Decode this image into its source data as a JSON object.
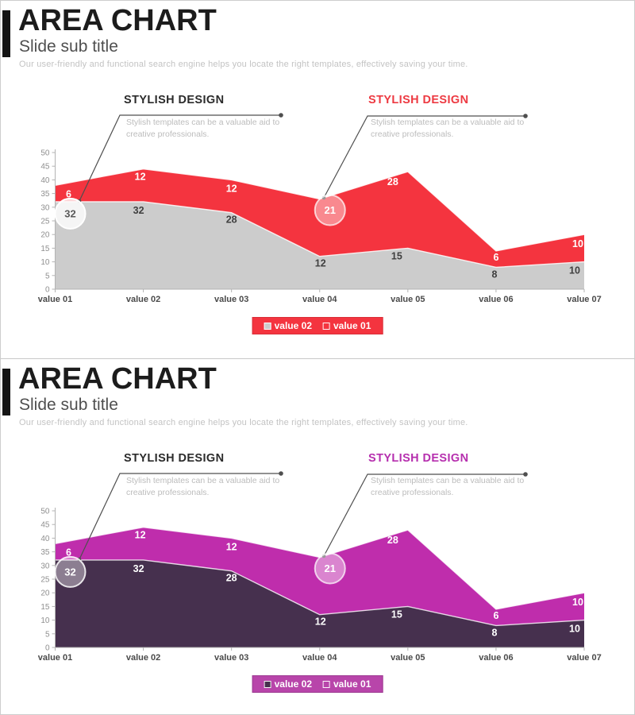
{
  "slides": [
    {
      "header": {
        "title": "AREA CHART",
        "subtitle": "Slide sub title",
        "description": "Our user-friendly and functional search engine helps you locate the right templates, effectively saving your time."
      },
      "callouts": [
        {
          "title": "STYLISH DESIGN",
          "title_color": "#2b2b2b",
          "body": "Stylish templates can be a valuable aid to creative professionals."
        },
        {
          "title": "STYLISH DESIGN",
          "title_color": "#ed3a42",
          "body": "Stylish templates can be a valuable aid to creative professionals."
        }
      ],
      "legend": {
        "bg": "#f4343f",
        "border": "#d82f39",
        "items": [
          {
            "label": "value 02",
            "swatch": "#cccccc"
          },
          {
            "label": "value 01",
            "swatch": "transparent"
          }
        ]
      },
      "style": {
        "series_colors": [
          "#cccccc",
          "#f4343f"
        ],
        "label_colors": [
          "#3f3f3f",
          "#ffffff"
        ],
        "edge_stroke": "rgba(255,255,255,0.85)",
        "markers": [
          {
            "fill": "rgba(255,255,255,0.8)",
            "stroke": "#ffffff",
            "text": "#5a5a5a"
          },
          {
            "fill": "rgba(255,255,255,0.42)",
            "stroke": "rgba(255,255,255,0.72)",
            "text": "#ffffff"
          }
        ],
        "connector": "#4f4f4f",
        "axis": "#b3b3b3",
        "tick_text": "#8f8f8f",
        "xlabel_color": "#4a4a4a"
      }
    },
    {
      "header": {
        "title": "AREA CHART",
        "subtitle": "Slide sub title",
        "description": "Our user-friendly and functional search engine helps you locate the right templates, effectively saving your time."
      },
      "callouts": [
        {
          "title": "STYLISH DESIGN",
          "title_color": "#2b2b2b",
          "body": "Stylish templates can be a valuable aid to creative professionals."
        },
        {
          "title": "STYLISH DESIGN",
          "title_color": "#b62fae",
          "body": "Stylish templates can be a valuable aid to creative professionals."
        }
      ],
      "legend": {
        "bg": "#b845aa",
        "border": "#9c3a91",
        "items": [
          {
            "label": "value 02",
            "swatch": "#46304e"
          },
          {
            "label": "value 01",
            "swatch": "transparent"
          }
        ]
      },
      "style": {
        "series_colors": [
          "#46304e",
          "#bf2dac"
        ],
        "label_colors": [
          "#ffffff",
          "#ffffff"
        ],
        "edge_stroke": "rgba(255,255,255,0.8)",
        "markers": [
          {
            "fill": "rgba(255,255,255,0.38)",
            "stroke": "rgba(255,255,255,0.85)",
            "text": "#ffffff"
          },
          {
            "fill": "rgba(255,255,255,0.42)",
            "stroke": "rgba(255,255,255,0.72)",
            "text": "#ffffff"
          }
        ],
        "connector": "#4f4f4f",
        "axis": "#b3b3b3",
        "tick_text": "#8f8f8f",
        "xlabel_color": "#4a4a4a"
      }
    }
  ],
  "chart_data": [
    {
      "type": "area",
      "stacked": true,
      "title": "",
      "x_categories": [
        "value 01",
        "value 02",
        "value 03",
        "value 04",
        "value 05",
        "value 06",
        "value 07"
      ],
      "series": [
        {
          "name": "value 02",
          "values": [
            32,
            32,
            28,
            12,
            15,
            8,
            10
          ]
        },
        {
          "name": "value 01",
          "values": [
            6,
            12,
            12,
            21,
            28,
            6,
            10
          ]
        }
      ],
      "stacked_totals": [
        38,
        44,
        40,
        33,
        43,
        14,
        20
      ],
      "ylim": [
        0,
        50
      ],
      "yticks": [
        0,
        5,
        10,
        15,
        20,
        25,
        30,
        35,
        40,
        45,
        50
      ],
      "grid": false,
      "legend_labels": [
        "value 02",
        "value 01"
      ],
      "legend_position": "bottom",
      "markers": [
        {
          "series": 0,
          "index": 0,
          "label": "32"
        },
        {
          "series": 1,
          "index": 3,
          "label": "21"
        }
      ]
    },
    {
      "type": "area",
      "stacked": true,
      "title": "",
      "x_categories": [
        "value 01",
        "value 02",
        "value 03",
        "value 04",
        "value 05",
        "value 06",
        "value 07"
      ],
      "series": [
        {
          "name": "value 02",
          "values": [
            32,
            32,
            28,
            12,
            15,
            8,
            10
          ]
        },
        {
          "name": "value 01",
          "values": [
            6,
            12,
            12,
            21,
            28,
            6,
            10
          ]
        }
      ],
      "stacked_totals": [
        38,
        44,
        40,
        33,
        43,
        14,
        20
      ],
      "ylim": [
        0,
        50
      ],
      "yticks": [
        0,
        5,
        10,
        15,
        20,
        25,
        30,
        35,
        40,
        45,
        50
      ],
      "grid": false,
      "legend_labels": [
        "value 02",
        "value 01"
      ],
      "legend_position": "bottom",
      "markers": [
        {
          "series": 0,
          "index": 0,
          "label": "32"
        },
        {
          "series": 1,
          "index": 3,
          "label": "21"
        }
      ]
    }
  ]
}
